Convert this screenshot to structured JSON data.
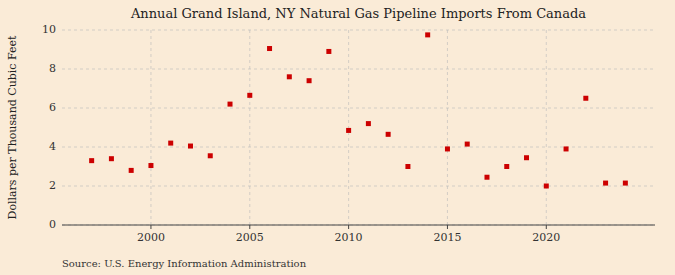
{
  "chart_data": {
    "type": "scatter",
    "title": "Annual Grand Island, NY Natural Gas Pipeline Imports From Canada",
    "ylabel": "Dollars per Thousand Cubic Feet",
    "annotation": "Source: U.S. Energy Information Administration",
    "x": [
      1997,
      1998,
      1999,
      2000,
      2001,
      2002,
      2003,
      2004,
      2005,
      2006,
      2007,
      2008,
      2009,
      2010,
      2011,
      2012,
      2013,
      2014,
      2015,
      2016,
      2017,
      2018,
      2019,
      2020,
      2021,
      2022,
      2023,
      2024
    ],
    "values": [
      3.3,
      3.4,
      2.8,
      3.05,
      4.2,
      4.05,
      3.55,
      6.2,
      6.65,
      9.05,
      7.6,
      7.4,
      8.9,
      4.85,
      5.2,
      4.65,
      3.0,
      9.75,
      3.9,
      4.15,
      2.45,
      3.0,
      3.45,
      2.0,
      3.9,
      6.5,
      2.15,
      2.15
    ],
    "color": "#cc0000",
    "marker": "square",
    "xlim": [
      1995.5,
      2025.5
    ],
    "ylim": [
      0,
      10
    ],
    "xticks": [
      2000,
      2005,
      2010,
      2015,
      2020
    ],
    "yticks": [
      0,
      2,
      4,
      6,
      8,
      10
    ],
    "grid": true
  }
}
